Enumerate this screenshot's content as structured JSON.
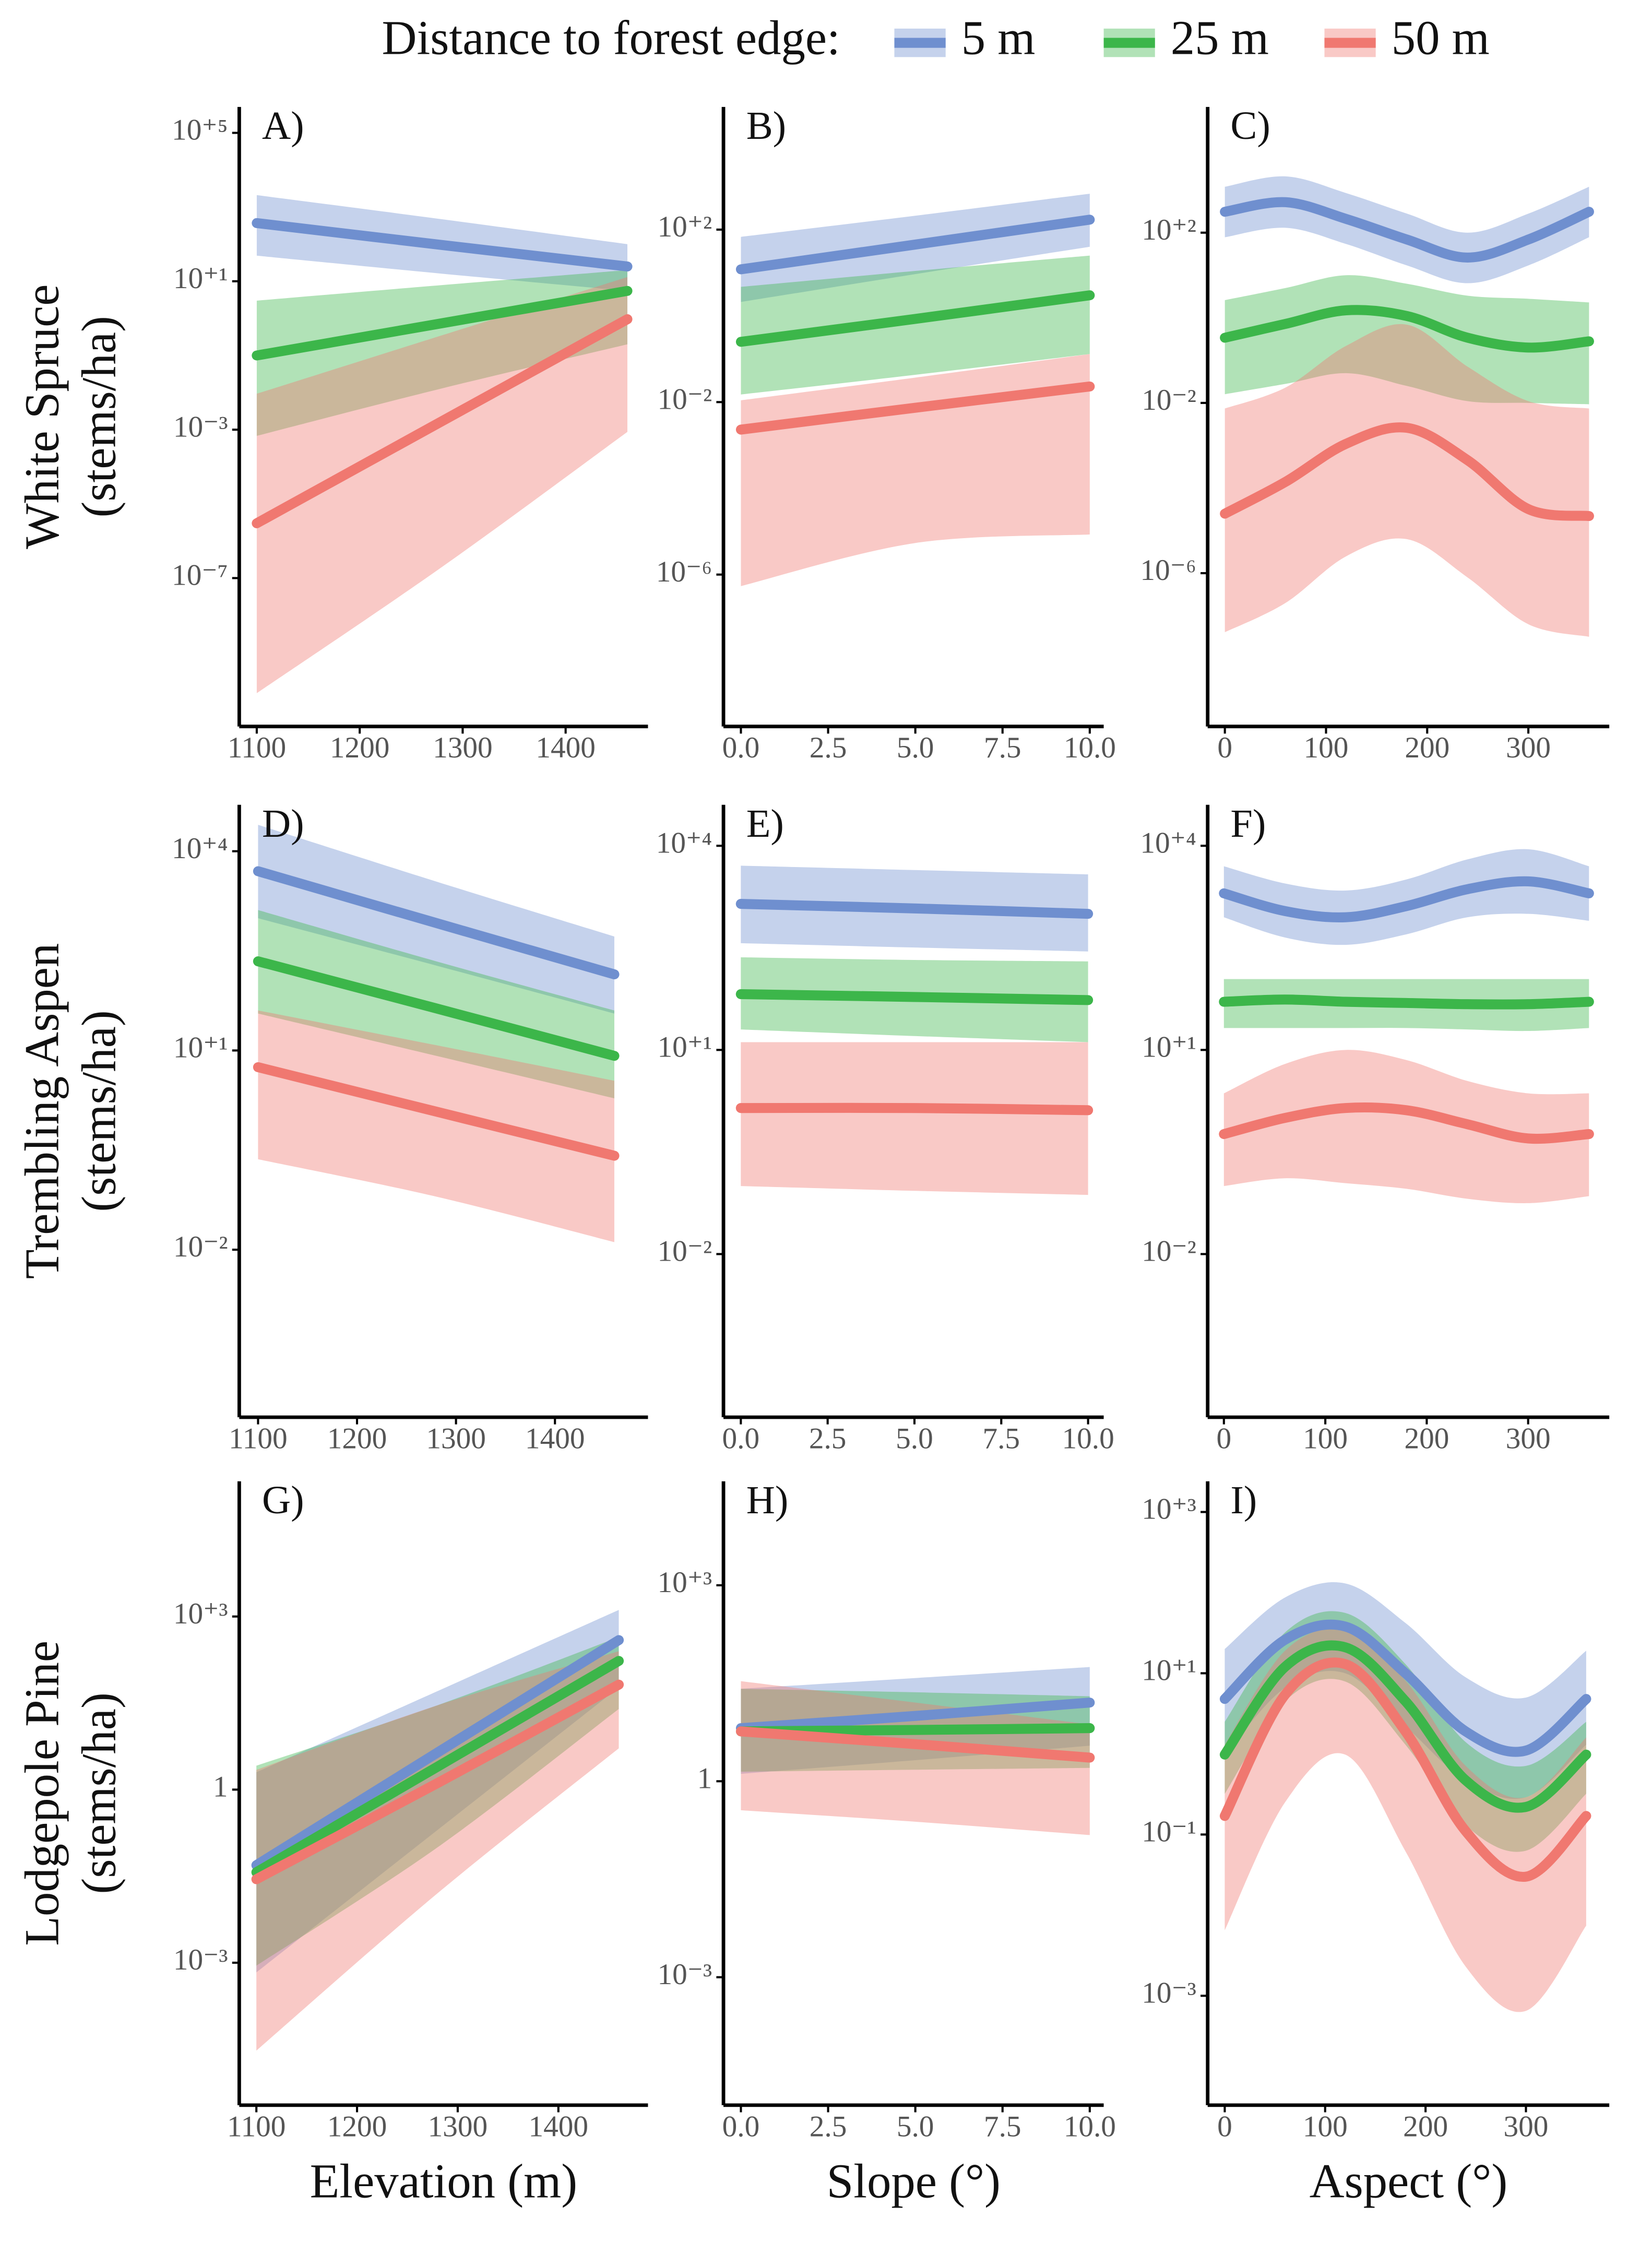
{
  "legend_title": "Distance to forest edge:",
  "chart_data": [
    {
      "type": "line",
      "label": "A)",
      "yscale": "log",
      "ylabel": [
        "White Spruce",
        "(stems/ha)"
      ],
      "x": [
        1100,
        1280,
        1460
      ],
      "xlim": [
        1083,
        1480
      ],
      "xticks": [
        1100,
        1200,
        1300,
        1400
      ],
      "ylim": [
        1e-11,
        500000.0
      ],
      "yticks": [
        {
          "value": 100000,
          "label": "10⁺⁵"
        },
        {
          "value": 10,
          "label": "10⁺¹"
        },
        {
          "value": 0.001,
          "label": "10⁻³"
        },
        {
          "value": 1e-07,
          "label": "10⁻⁷"
        }
      ],
      "series": [
        {
          "name": "5 m",
          "color": "#6f8fcf",
          "values": [
            370.0,
            95.0,
            25.0
          ],
          "upper": [
            2100.0,
            470.0,
            100.0
          ],
          "lower": [
            49.0,
            16.0,
            5.5
          ]
        },
        {
          "name": "25 m",
          "color": "#3cb64a",
          "values": [
            0.1,
            0.74,
            5.5
          ],
          "upper": [
            3.0,
            7.9,
            20.0
          ],
          "lower": [
            0.00068,
            0.013,
            0.2
          ]
        },
        {
          "name": "50 m",
          "color": "#f07870",
          "values": [
            3e-06,
            0.0017,
            0.95
          ],
          "upper": [
            0.0093,
            0.35,
            13.0
          ],
          "lower": [
            7.9e-11,
            2e-07,
            0.00087
          ]
        }
      ]
    },
    {
      "type": "line",
      "label": "B)",
      "yscale": "log",
      "x": [
        0,
        5,
        10
      ],
      "xlim": [
        -0.5,
        10.4
      ],
      "xticks": [
        {
          "value": 0,
          "label": "0.0"
        },
        2.5,
        {
          "value": 5,
          "label": "5.0"
        },
        7.5,
        {
          "value": 10,
          "label": "10.0"
        }
      ],
      "ylim": [
        3e-10,
        70000.0
      ],
      "yticks": [
        {
          "value": 100,
          "label": "10⁺²"
        },
        {
          "value": 0.01,
          "label": "10⁻²"
        },
        {
          "value": 1e-06,
          "label": "10⁻⁶"
        }
      ],
      "series": [
        {
          "name": "5 m",
          "color": "#6f8fcf",
          "values": [
            12.0,
            45.0,
            170.0
          ],
          "upper": [
            68.0,
            210.0,
            680.0
          ],
          "lower": [
            2.1,
            9.3,
            40.0
          ]
        },
        {
          "name": "25 m",
          "color": "#3cb64a",
          "values": [
            0.25,
            0.85,
            3.0
          ],
          "upper": [
            4.7,
            11.0,
            25.0
          ],
          "lower": [
            0.015,
            0.043,
            0.13
          ]
        },
        {
          "name": "50 m",
          "color": "#f07870",
          "values": [
            0.0023,
            0.0074,
            0.023
          ],
          "upper": [
            0.011,
            0.037,
            0.13
          ],
          "lower": [
            5.4e-07,
            5.4e-06,
            8.5e-06
          ]
        }
      ]
    },
    {
      "type": "line",
      "label": "C)",
      "yscale": "log",
      "x": [
        0,
        60,
        120,
        180,
        240,
        300,
        360
      ],
      "xlim": [
        -17,
        380
      ],
      "xticks": [
        0,
        100,
        200,
        300
      ],
      "ylim": [
        2.5e-10,
        90000.0
      ],
      "yticks": [
        {
          "value": 100,
          "label": "10⁺²"
        },
        {
          "value": 0.01,
          "label": "10⁻²"
        },
        {
          "value": 1e-06,
          "label": "10⁻⁶"
        }
      ],
      "series": [
        {
          "name": "5 m",
          "color": "#6f8fcf",
          "values": [
            310.0,
            520.0,
            210.0,
            69.0,
            26.0,
            69.0,
            310.0
          ],
          "upper": [
            1200.0,
            2100.0,
            850.0,
            280.0,
            100.0,
            280.0,
            1200.0
          ],
          "lower": [
            78.0,
            130.0,
            54.0,
            17.0,
            6.5,
            17.0,
            78.0
          ]
        },
        {
          "name": "25 m",
          "color": "#3cb64a",
          "values": [
            0.34,
            0.72,
            1.5,
            1.1,
            0.34,
            0.2,
            0.28
          ],
          "upper": [
            2.6,
            5.0,
            10.0,
            6.3,
            3.3,
            2.8,
            2.3
          ],
          "lower": [
            0.016,
            0.028,
            0.05,
            0.025,
            0.011,
            0.01,
            0.0093
          ]
        },
        {
          "name": "50 m",
          "color": "#f07870",
          "values": [
            2.5e-05,
            0.00014,
            0.0011,
            0.0026,
            0.00045,
            3.2e-05,
            2.2e-05
          ],
          "upper": [
            0.0074,
            0.023,
            0.22,
            0.69,
            0.071,
            0.011,
            0.0074
          ],
          "lower": [
            4.1e-08,
            2e-07,
            2.5e-06,
            6.3e-06,
            7.9e-07,
            6.3e-08,
            3.2e-08
          ]
        }
      ]
    },
    {
      "type": "line",
      "label": "D)",
      "yscale": "log",
      "ylabel": [
        "Trembling Aspen",
        "(stems/ha)"
      ],
      "x": [
        1100,
        1280,
        1460
      ],
      "xlim": [
        1081,
        1494
      ],
      "xticks": [
        1100,
        1200,
        1300,
        1400
      ],
      "ylim": [
        3e-05,
        50000.0
      ],
      "yticks": [
        {
          "value": 10000,
          "label": "10⁺⁴"
        },
        {
          "value": 10,
          "label": "10⁺¹"
        },
        {
          "value": 0.01,
          "label": "10⁻²"
        }
      ],
      "series": [
        {
          "name": "5 m",
          "color": "#6f8fcf",
          "values": [
            5000.0,
            830.0,
            140.0
          ],
          "upper": [
            25000.0,
            3500.0,
            520.0
          ],
          "lower": [
            980.0,
            190.0,
            36.0
          ]
        },
        {
          "name": "25 m",
          "color": "#3cb64a",
          "values": [
            220.0,
            43.0,
            8.3
          ],
          "upper": [
            1300.0,
            220.0,
            40.0
          ],
          "lower": [
            36.0,
            8.3,
            1.9
          ]
        },
        {
          "name": "50 m",
          "color": "#f07870",
          "values": [
            5.6,
            1.2,
            0.26
          ],
          "upper": [
            40.0,
            12.0,
            3.5
          ],
          "lower": [
            0.23,
            0.063,
            0.013
          ]
        }
      ]
    },
    {
      "type": "line",
      "label": "E)",
      "yscale": "log",
      "x": [
        0,
        5,
        10
      ],
      "xlim": [
        -0.5,
        10.45
      ],
      "xticks": [
        {
          "value": 0,
          "label": "0.0"
        },
        2.5,
        {
          "value": 5,
          "label": "5.0"
        },
        7.5,
        {
          "value": 10,
          "label": "10.0"
        }
      ],
      "ylim": [
        4e-05,
        40000.0
      ],
      "yticks": [
        {
          "value": 10000,
          "label": "10⁺⁴"
        },
        {
          "value": 10,
          "label": "10⁺¹"
        },
        {
          "value": 0.01,
          "label": "10⁻²"
        }
      ],
      "series": [
        {
          "name": "5 m",
          "color": "#6f8fcf",
          "values": [
            1400.0,
            1200.0,
            1000.0
          ],
          "upper": [
            5100.0,
            4400.0,
            3800.0
          ],
          "lower": [
            370.0,
            320.0,
            280.0
          ]
        },
        {
          "name": "25 m",
          "color": "#3cb64a",
          "values": [
            66.0,
            60.0,
            54.0
          ],
          "upper": [
            230.0,
            210.0,
            200.0
          ],
          "lower": [
            20.0,
            16.0,
            13.0
          ]
        },
        {
          "name": "50 m",
          "color": "#f07870",
          "values": [
            1.4,
            1.4,
            1.3
          ],
          "upper": [
            13.0,
            13.0,
            13.0
          ],
          "lower": [
            0.1,
            0.085,
            0.074
          ]
        }
      ]
    },
    {
      "type": "line",
      "label": "F)",
      "yscale": "log",
      "x": [
        0,
        60,
        120,
        180,
        240,
        300,
        360
      ],
      "xlim": [
        -16,
        380
      ],
      "xticks": [
        0,
        100,
        200,
        300
      ],
      "ylim": [
        4e-05,
        40000.0
      ],
      "yticks": [
        {
          "value": 10000,
          "label": "10⁺⁴"
        },
        {
          "value": 10,
          "label": "10⁺¹"
        },
        {
          "value": 0.01,
          "label": "10⁻²"
        }
      ],
      "series": [
        {
          "name": "5 m",
          "color": "#6f8fcf",
          "values": [
            2000.0,
            1100.0,
            890.0,
            1300.0,
            2300.0,
            3000.0,
            2000.0
          ],
          "upper": [
            5000.0,
            2800.0,
            2200.0,
            3200.0,
            6300.0,
            8900.0,
            5000.0
          ],
          "lower": [
            890.0,
            450.0,
            350.0,
            500.0,
            890.0,
            1000.0,
            790.0
          ]
        },
        {
          "name": "25 m",
          "color": "#3cb64a",
          "values": [
            51.0,
            55.0,
            51.0,
            49.0,
            47.0,
            47.0,
            51.0
          ],
          "upper": [
            110.0,
            110.0,
            110.0,
            110.0,
            110.0,
            110.0,
            110.0
          ],
          "lower": [
            21.0,
            21.0,
            21.0,
            21.0,
            20.0,
            19.0,
            21.0
          ]
        },
        {
          "name": "50 m",
          "color": "#f07870",
          "values": [
            0.58,
            1.0,
            1.4,
            1.3,
            0.81,
            0.5,
            0.58
          ],
          "upper": [
            2.3,
            6.2,
            10.0,
            7.1,
            3.5,
            2.3,
            2.3
          ],
          "lower": [
            0.1,
            0.13,
            0.11,
            0.091,
            0.065,
            0.056,
            0.071
          ]
        }
      ]
    },
    {
      "type": "line",
      "label": "G)",
      "yscale": "log",
      "ylabel": [
        "Lodgepole Pine",
        "(stems/ha)"
      ],
      "xlabel": "Elevation (m)",
      "x": [
        1100,
        1280,
        1460
      ],
      "xlim": [
        1083,
        1489
      ],
      "xticks": [
        1100,
        1200,
        1300,
        1400
      ],
      "ylim": [
        3.4e-06,
        220000.0
      ],
      "yticks": [
        {
          "value": 1000,
          "label": "10⁺³"
        },
        1,
        {
          "value": 0.001,
          "label": "10⁻³"
        }
      ],
      "series": [
        {
          "name": "5 m",
          "color": "#6f8fcf",
          "values": [
            0.049,
            4.4,
            390.0
          ],
          "upper": [
            2.0,
            51.0,
            1300.0
          ],
          "lower": [
            0.00068,
            0.2,
            59.0
          ]
        },
        {
          "name": "25 m",
          "color": "#3cb64a",
          "values": [
            0.037,
            2.5,
            170.0
          ],
          "upper": [
            2.6,
            29.0,
            440.0
          ],
          "lower": [
            0.00089,
            0.1,
            25.0
          ]
        },
        {
          "name": "50 m",
          "color": "#f07870",
          "values": [
            0.028,
            1.3,
            66.0
          ],
          "upper": [
            2.2,
            29.0,
            250.0
          ],
          "lower": [
            3e-05,
            0.016,
            5.2
          ]
        }
      ]
    },
    {
      "type": "line",
      "label": "H)",
      "yscale": "log",
      "xlabel": "Slope (°)",
      "x": [
        0,
        5,
        10
      ],
      "xlim": [
        -0.5,
        10.4
      ],
      "xticks": [
        {
          "value": 0,
          "label": "0.0"
        },
        2.5,
        {
          "value": 5,
          "label": "5.0"
        },
        7.5,
        {
          "value": 10,
          "label": "10.0"
        }
      ],
      "ylim": [
        1.1e-05,
        39000.0
      ],
      "yticks": [
        {
          "value": 1000,
          "label": "10⁺³"
        },
        1,
        {
          "value": 0.001,
          "label": "10⁻³"
        }
      ],
      "series": [
        {
          "name": "5 m",
          "color": "#6f8fcf",
          "values": [
            6.5,
            10.0,
            16.0
          ],
          "upper": [
            26.0,
            38.0,
            56.0
          ],
          "lower": [
            1.3,
            2.1,
            3.5
          ]
        },
        {
          "name": "25 m",
          "color": "#3cb64a",
          "values": [
            5.8,
            6.1,
            6.5
          ],
          "upper": [
            26.0,
            23.0,
            20.0
          ],
          "lower": [
            1.4,
            1.5,
            1.6
          ]
        },
        {
          "name": "50 m",
          "color": "#f07870",
          "values": [
            5.8,
            3.7,
            2.3
          ],
          "upper": [
            34.0,
            16.0,
            7.4
          ],
          "lower": [
            0.36,
            0.24,
            0.15
          ]
        }
      ]
    },
    {
      "type": "line",
      "label": "I)",
      "yscale": "log",
      "xlabel": "Aspect (°)",
      "x": [
        0,
        60,
        120,
        180,
        240,
        300,
        360
      ],
      "xlim": [
        -17,
        383
      ],
      "xticks": [
        0,
        100,
        200,
        300
      ],
      "ylim": [
        4.4e-05,
        2400.0
      ],
      "yticks": [
        {
          "value": 1000,
          "label": "10⁺³"
        },
        {
          "value": 10,
          "label": "10⁺¹"
        },
        {
          "value": 0.1,
          "label": "10⁻¹"
        },
        {
          "value": 0.001,
          "label": "10⁻³"
        }
      ],
      "series": [
        {
          "name": "5 m",
          "color": "#6f8fcf",
          "values": [
            4.8,
            26.0,
            38.0,
            10.0,
            1.9,
            1.1,
            4.8
          ],
          "upper": [
            20.0,
            87.0,
            130.0,
            42.0,
            8.9,
            5.0,
            19.0
          ],
          "lower": [
            0.98,
            6.6,
            10.0,
            2.2,
            0.47,
            0.29,
            1.3
          ]
        },
        {
          "name": "25 m",
          "color": "#3cb64a",
          "values": [
            0.98,
            12.0,
            21.0,
            4.5,
            0.47,
            0.22,
            0.98
          ],
          "upper": [
            2.5,
            32.0,
            56.0,
            13.0,
            1.4,
            0.71,
            2.5
          ],
          "lower": [
            0.32,
            4.5,
            7.9,
            1.3,
            0.13,
            0.063,
            0.32
          ]
        },
        {
          "name": "50 m",
          "color": "#f07870",
          "values": [
            0.17,
            5.4,
            13.0,
            1.9,
            0.11,
            0.03,
            0.17
          ],
          "upper": [
            1.3,
            19.0,
            34.0,
            8.1,
            0.71,
            0.29,
            1.6
          ],
          "lower": [
            0.0065,
            0.25,
            0.98,
            0.062,
            0.0023,
            0.00065,
            0.0074
          ]
        }
      ]
    }
  ]
}
